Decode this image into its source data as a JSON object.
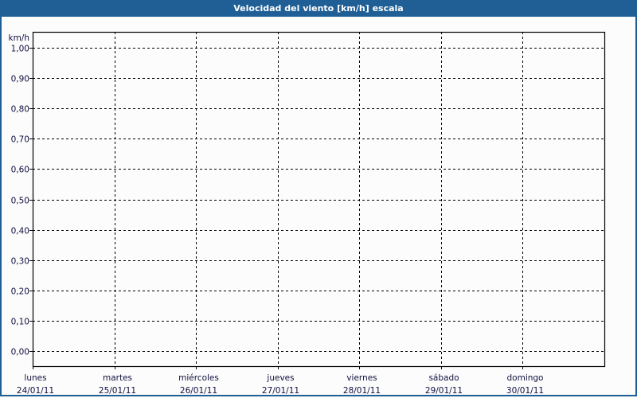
{
  "window": {
    "title": "Velocidad del viento [km/h] escala"
  },
  "chart_data": {
    "type": "line",
    "title": "Velocidad del viento [km/h] escala",
    "ylabel": "km/h",
    "xlabel": "",
    "ylim": [
      0,
      1
    ],
    "yticks": [
      "0,00",
      "0,10",
      "0,20",
      "0,30",
      "0,40",
      "0,50",
      "0,60",
      "0,70",
      "0,80",
      "0,90",
      "1,00"
    ],
    "categories": [
      {
        "day": "lunes",
        "date": "24/01/11"
      },
      {
        "day": "martes",
        "date": "25/01/11"
      },
      {
        "day": "miércoles",
        "date": "26/01/11"
      },
      {
        "day": "jueves",
        "date": "27/01/11"
      },
      {
        "day": "viernes",
        "date": "28/01/11"
      },
      {
        "day": "sábado",
        "date": "29/01/11"
      },
      {
        "day": "domingo",
        "date": "30/01/11"
      }
    ],
    "series": [],
    "grid": true,
    "colors": {
      "titlebar": "#1f5f96",
      "grid": "#000000",
      "text": "#101040"
    }
  }
}
